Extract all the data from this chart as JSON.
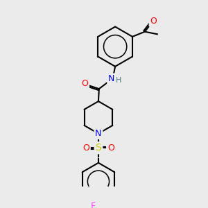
{
  "background_color": "#ebebeb",
  "bond_color": "#000000",
  "atom_colors": {
    "O": "#ff0000",
    "N": "#0000ff",
    "S": "#cccc00",
    "F": "#ff44ff",
    "H": "#4a8080",
    "C": "#000000"
  },
  "title": "",
  "figsize": [
    3.0,
    3.0
  ],
  "dpi": 100
}
